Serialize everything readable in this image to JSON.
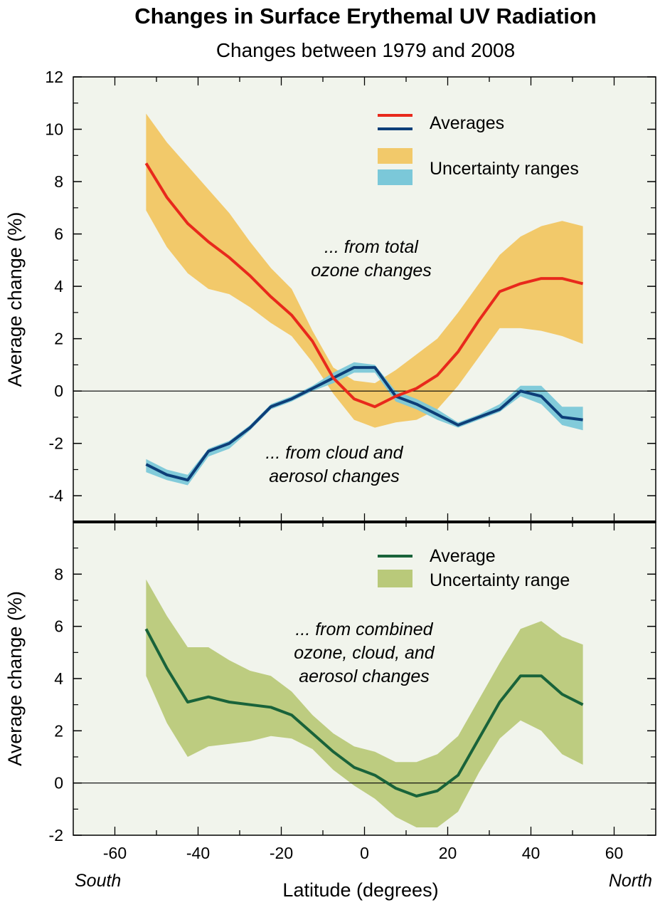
{
  "title": "Changes in Surface Erythemal UV Radiation",
  "subtitle": "Changes between 1979 and 2008",
  "x_axis": {
    "label": "Latitude (degrees)",
    "left_note": "South",
    "right_note": "North",
    "ticks": [
      "-60",
      "-40",
      "-20",
      "0",
      "20",
      "40",
      "60"
    ]
  },
  "colors": {
    "panel_bg": "#f1f4ec",
    "ozone_line": "#e8291c",
    "ozone_band": "#f2c96a",
    "cloud_line": "#0d3e78",
    "cloud_band": "#7bc8d9",
    "combined_line": "#19633a",
    "combined_band": "#b9c97a"
  },
  "chart_data": [
    {
      "type": "line",
      "title": "",
      "xlabel": "",
      "ylabel": "Average change (%)",
      "xlim": [
        -70,
        70
      ],
      "ylim": [
        -5,
        12
      ],
      "yticks": [
        "-4",
        "-2",
        "0",
        "2",
        "4",
        "6",
        "8",
        "10",
        "12"
      ],
      "grid": false,
      "legend": {
        "position": "top-right",
        "entries": [
          "Averages",
          "Uncertainty ranges"
        ]
      },
      "annotations": [
        {
          "lines": [
            "... from total",
            "ozone changes"
          ]
        },
        {
          "lines": [
            "... from cloud and",
            "aerosol changes"
          ]
        }
      ],
      "x": [
        -52.5,
        -47.5,
        -42.5,
        -37.5,
        -32.5,
        -27.5,
        -22.5,
        -17.5,
        -12.5,
        -7.5,
        -2.5,
        2.5,
        7.5,
        12.5,
        17.5,
        22.5,
        27.5,
        32.5,
        37.5,
        42.5,
        47.5,
        52.5
      ],
      "series": [
        {
          "kind": "ozone",
          "values": [
            8.7,
            7.4,
            6.4,
            5.7,
            5.1,
            4.4,
            3.6,
            2.9,
            1.9,
            0.5,
            -0.3,
            -0.6,
            -0.2,
            0.1,
            0.6,
            1.5,
            2.7,
            3.8,
            4.1,
            4.3,
            4.3,
            4.1
          ],
          "upper": [
            10.6,
            9.5,
            8.6,
            7.7,
            6.8,
            5.7,
            4.7,
            3.9,
            2.3,
            0.9,
            0.4,
            0.3,
            0.8,
            1.4,
            2.0,
            3.0,
            4.1,
            5.2,
            5.9,
            6.3,
            6.5,
            6.3
          ],
          "lower": [
            6.9,
            5.5,
            4.5,
            3.9,
            3.7,
            3.2,
            2.6,
            2.1,
            1.1,
            -0.1,
            -1.1,
            -1.4,
            -1.2,
            -1.1,
            -0.7,
            0.2,
            1.3,
            2.4,
            2.4,
            2.3,
            2.1,
            1.8
          ]
        },
        {
          "kind": "cloud_aerosol",
          "values": [
            -2.8,
            -3.2,
            -3.4,
            -2.3,
            -2.0,
            -1.4,
            -0.6,
            -0.3,
            0.1,
            0.5,
            0.9,
            0.9,
            -0.2,
            -0.5,
            -0.9,
            -1.3,
            -1.0,
            -0.7,
            0.0,
            -0.2,
            -1.0,
            -1.1
          ],
          "upper": [
            -2.6,
            -3.0,
            -3.2,
            -2.2,
            -1.9,
            -1.3,
            -0.5,
            -0.2,
            0.2,
            0.7,
            1.1,
            1.0,
            0.0,
            -0.3,
            -0.7,
            -1.2,
            -0.9,
            -0.5,
            0.2,
            0.2,
            -0.6,
            -0.6
          ],
          "lower": [
            -3.1,
            -3.4,
            -3.6,
            -2.5,
            -2.2,
            -1.5,
            -0.7,
            -0.4,
            0.0,
            0.3,
            0.7,
            0.7,
            -0.4,
            -0.7,
            -1.1,
            -1.4,
            -1.1,
            -0.8,
            -0.2,
            -0.5,
            -1.3,
            -1.5
          ]
        }
      ]
    },
    {
      "type": "line",
      "title": "",
      "xlabel": "Latitude (degrees)",
      "ylabel": "Average change (%)",
      "xlim": [
        -70,
        70
      ],
      "ylim": [
        -2,
        10
      ],
      "yticks": [
        "-2",
        "0",
        "2",
        "4",
        "6",
        "8"
      ],
      "xticks": [
        "-60",
        "-40",
        "-20",
        "0",
        "20",
        "40",
        "60"
      ],
      "grid": false,
      "legend": {
        "position": "top-right",
        "entries": [
          "Average",
          "Uncertainty range"
        ]
      },
      "annotations": [
        {
          "lines": [
            "... from combined",
            "ozone, cloud, and",
            "aerosol changes"
          ]
        }
      ],
      "x": [
        -52.5,
        -47.5,
        -42.5,
        -37.5,
        -32.5,
        -27.5,
        -22.5,
        -17.5,
        -12.5,
        -7.5,
        -2.5,
        2.5,
        7.5,
        12.5,
        17.5,
        22.5,
        27.5,
        32.5,
        37.5,
        42.5,
        47.5,
        52.5
      ],
      "series": [
        {
          "kind": "combined",
          "values": [
            5.9,
            4.4,
            3.1,
            3.3,
            3.1,
            3.0,
            2.9,
            2.6,
            1.9,
            1.2,
            0.6,
            0.3,
            -0.2,
            -0.5,
            -0.3,
            0.3,
            1.7,
            3.1,
            4.1,
            4.1,
            3.4,
            3.0
          ],
          "upper": [
            7.8,
            6.4,
            5.2,
            5.2,
            4.7,
            4.3,
            4.1,
            3.5,
            2.6,
            1.9,
            1.4,
            1.2,
            0.8,
            0.8,
            1.1,
            1.8,
            3.2,
            4.6,
            5.9,
            6.2,
            5.6,
            5.3
          ],
          "lower": [
            4.1,
            2.3,
            1.0,
            1.4,
            1.5,
            1.6,
            1.8,
            1.7,
            1.3,
            0.5,
            -0.1,
            -0.6,
            -1.3,
            -1.7,
            -1.7,
            -1.1,
            0.4,
            1.7,
            2.4,
            2.0,
            1.1,
            0.7
          ]
        }
      ]
    }
  ]
}
